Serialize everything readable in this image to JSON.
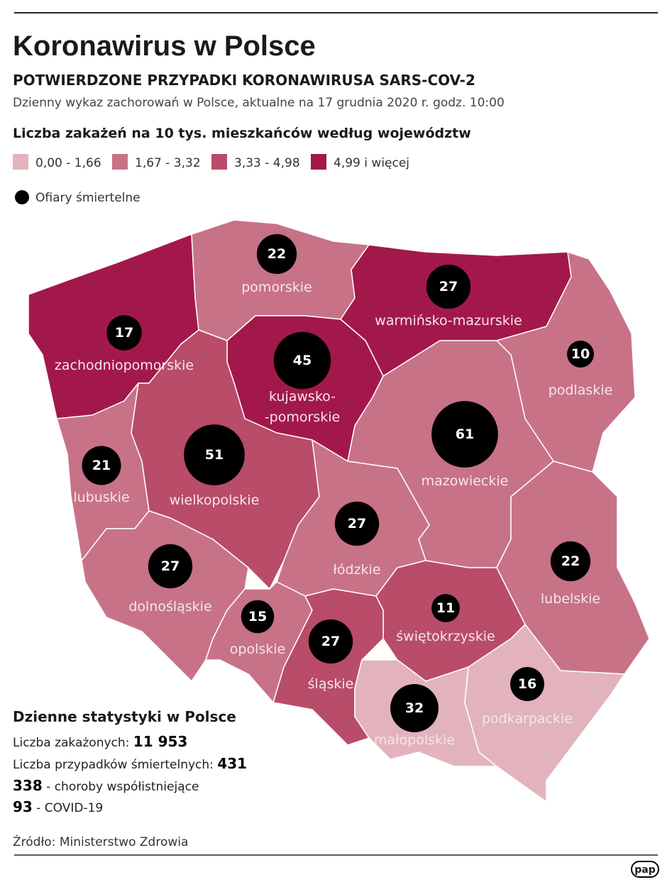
{
  "header": {
    "title": "Koronawirus w Polsce",
    "subtitle": "POTWIERDZONE PRZYPADKI KORONAWIRUSA SARS-COV-2",
    "description": "Dzienny wykaz zachorowań w Polsce, aktualne na 17 grudnia 2020 r. godz. 10:00"
  },
  "legend": {
    "title": "Liczba zakażeń na 10 tys. mieszkańców według województw",
    "classes": [
      {
        "label": "0,00 - 1,66",
        "color": "#e2b3bd"
      },
      {
        "label": "1,67 - 3,32",
        "color": "#c87287"
      },
      {
        "label": "3,33 - 4,98",
        "color": "#b84c69"
      },
      {
        "label": "4,99 i więcej",
        "color": "#a3184b"
      }
    ],
    "deaths_label": "Ofiary śmiertelne"
  },
  "regions": [
    {
      "name": [
        "zachodniopomorskie"
      ],
      "deaths": 17,
      "color": "#a3184b"
    },
    {
      "name": [
        "pomorskie"
      ],
      "deaths": 22,
      "color": "#c87287"
    },
    {
      "name": [
        "warmińsko-mazurskie"
      ],
      "deaths": 27,
      "color": "#a3184b"
    },
    {
      "name": [
        "kujawsko-",
        "-pomorskie"
      ],
      "deaths": 45,
      "color": "#a3184b"
    },
    {
      "name": [
        "podlaskie"
      ],
      "deaths": 10,
      "color": "#c87287"
    },
    {
      "name": [
        "lubuskie"
      ],
      "deaths": 21,
      "color": "#c87287"
    },
    {
      "name": [
        "wielkopolskie"
      ],
      "deaths": 51,
      "color": "#b84c69"
    },
    {
      "name": [
        "mazowieckie"
      ],
      "deaths": 61,
      "color": "#c87287"
    },
    {
      "name": [
        "łódzkie"
      ],
      "deaths": 27,
      "color": "#c87287"
    },
    {
      "name": [
        "lubelskie"
      ],
      "deaths": 22,
      "color": "#c87287"
    },
    {
      "name": [
        "dolnośląskie"
      ],
      "deaths": 27,
      "color": "#c87287"
    },
    {
      "name": [
        "opolskie"
      ],
      "deaths": 15,
      "color": "#c87287"
    },
    {
      "name": [
        "świętokrzyskie"
      ],
      "deaths": 11,
      "color": "#b84c69"
    },
    {
      "name": [
        "śląskie"
      ],
      "deaths": 27,
      "color": "#b84c69"
    },
    {
      "name": [
        "małopolskie"
      ],
      "deaths": 32,
      "color": "#e2b3bd"
    },
    {
      "name": [
        "podkarpackie"
      ],
      "deaths": 16,
      "color": "#e2b3bd"
    }
  ],
  "stats": {
    "title": "Dzienne statystyki w Polsce",
    "infections_label": "Liczba zakażonych:",
    "infections": "11 953",
    "deaths_label": "Liczba przypadków śmiertelnych:",
    "deaths": 431,
    "comorbid": 338,
    "comorbid_label": "- choroby współistniejące",
    "covid": 93,
    "covid_label": "- COVID-19"
  },
  "source": "Źródło: Ministerstwo Zdrowia",
  "logo": "pap"
}
